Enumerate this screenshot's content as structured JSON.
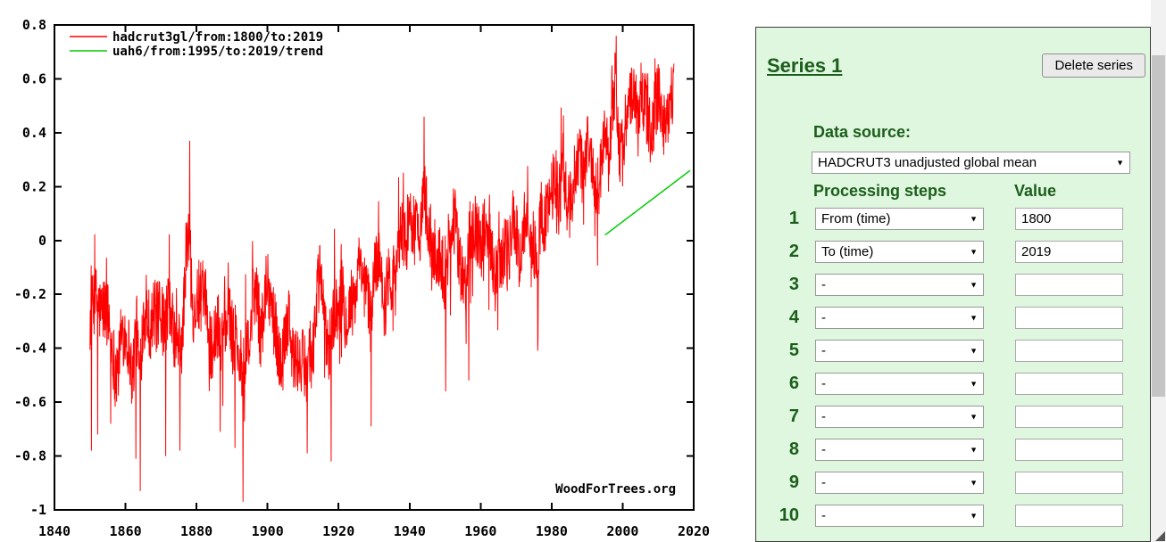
{
  "chart": {
    "watermark": "WoodForTrees.org"
  },
  "chart_data": {
    "type": "line",
    "title": "",
    "xlabel": "",
    "ylabel": "",
    "xlim": [
      1840,
      2020
    ],
    "ylim": [
      -1,
      0.8
    ],
    "grid": false,
    "legend_position": "top-left",
    "x_ticks": [
      1840,
      1860,
      1880,
      1900,
      1920,
      1940,
      1960,
      1980,
      2000,
      2020
    ],
    "x_tick_labels": [
      "1840",
      "1860",
      "1880",
      "1900",
      "1920",
      "1940",
      "1960",
      "1980",
      "2000",
      "2020"
    ],
    "y_ticks": [
      -1,
      -0.8,
      -0.6,
      -0.4,
      -0.2,
      0,
      0.2,
      0.4,
      0.6,
      0.8
    ],
    "y_tick_labels": [
      "-1",
      "-0.8",
      "-0.6",
      "-0.4",
      "-0.2",
      "0",
      "0.2",
      "0.4",
      "0.6",
      "0.8"
    ],
    "series": [
      {
        "name": "hadcrut3gl/from:1800/to:2019",
        "color": "#ff0000",
        "kind": "monthly_noisy",
        "x_start": 1850,
        "x_end": 2014.4,
        "annual_means": [
          -0.3,
          -0.22,
          -0.22,
          -0.27,
          -0.25,
          -0.27,
          -0.36,
          -0.47,
          -0.47,
          -0.33,
          -0.35,
          -0.4,
          -0.52,
          -0.3,
          -0.5,
          -0.28,
          -0.27,
          -0.32,
          -0.27,
          -0.28,
          -0.28,
          -0.33,
          -0.23,
          -0.3,
          -0.38,
          -0.39,
          -0.38,
          -0.06,
          0.03,
          -0.25,
          -0.24,
          -0.21,
          -0.21,
          -0.3,
          -0.39,
          -0.38,
          -0.31,
          -0.36,
          -0.32,
          -0.18,
          -0.4,
          -0.33,
          -0.45,
          -0.47,
          -0.43,
          -0.39,
          -0.2,
          -0.18,
          -0.36,
          -0.25,
          -0.15,
          -0.22,
          -0.31,
          -0.41,
          -0.48,
          -0.33,
          -0.25,
          -0.43,
          -0.45,
          -0.45,
          -0.46,
          -0.47,
          -0.4,
          -0.39,
          -0.19,
          -0.12,
          -0.32,
          -0.41,
          -0.33,
          -0.25,
          -0.25,
          -0.19,
          -0.29,
          -0.25,
          -0.26,
          -0.19,
          -0.09,
          -0.19,
          -0.17,
          -0.32,
          -0.11,
          -0.07,
          -0.12,
          -0.26,
          -0.11,
          -0.15,
          -0.11,
          0.0,
          0.03,
          0.0,
          0.05,
          0.07,
          0.04,
          0.05,
          0.2,
          0.09,
          -0.07,
          -0.05,
          -0.06,
          -0.07,
          -0.16,
          -0.01,
          0.03,
          0.08,
          -0.11,
          -0.13,
          -0.19,
          0.05,
          0.07,
          0.03,
          -0.02,
          0.03,
          0.0,
          0.01,
          -0.15,
          -0.09,
          -0.05,
          -0.02,
          -0.04,
          0.06,
          0.03,
          -0.08,
          0.02,
          0.14,
          -0.07,
          -0.01,
          -0.11,
          0.12,
          0.05,
          0.14,
          0.19,
          0.26,
          0.13,
          0.3,
          0.12,
          0.1,
          0.17,
          0.3,
          0.3,
          0.24,
          0.36,
          0.33,
          0.18,
          0.2,
          0.26,
          0.41,
          0.31,
          0.46,
          0.61,
          0.35,
          0.33,
          0.45,
          0.51,
          0.52,
          0.49,
          0.54,
          0.51,
          0.48,
          0.36,
          0.49,
          0.54,
          0.42,
          0.46,
          0.49,
          0.52
        ],
        "noise_amplitude": 0.13,
        "noise_seed": 12345,
        "spikes": [
          [
            1850.4,
            -0.78
          ],
          [
            1852.2,
            -0.72
          ],
          [
            1855.8,
            -0.68
          ],
          [
            1862.9,
            -0.81
          ],
          [
            1864.2,
            -0.93
          ],
          [
            1871.3,
            -0.8
          ],
          [
            1875.3,
            -0.78
          ],
          [
            1878.1,
            0.37
          ],
          [
            1886.7,
            -0.71
          ],
          [
            1890.8,
            -0.77
          ],
          [
            1893.1,
            -0.97
          ],
          [
            1911.2,
            -0.79
          ],
          [
            1917.9,
            -0.82
          ],
          [
            1929.2,
            -0.69
          ],
          [
            1944.1,
            0.46
          ],
          [
            1950.2,
            -0.56
          ],
          [
            1956.7,
            -0.52
          ],
          [
            1976.2,
            -0.37
          ],
          [
            1998.2,
            0.76
          ],
          [
            2007.1,
            0.62
          ],
          [
            2010.3,
            0.64
          ]
        ]
      },
      {
        "name": "uah6/from:1995/to:2019/trend",
        "color": "#00cc00",
        "kind": "trend",
        "x": [
          1995,
          2019
        ],
        "y": [
          0.02,
          0.26
        ]
      }
    ]
  },
  "panel": {
    "title": "Series 1",
    "delete_button": "Delete series",
    "data_source_label": "Data source:",
    "data_source_value": "HADCRUT3 unadjusted global mean",
    "processing_header": "Processing steps",
    "value_header": "Value",
    "rows": [
      {
        "num": "1",
        "step": "From (time)",
        "value": "1800"
      },
      {
        "num": "2",
        "step": "To (time)",
        "value": "2019"
      },
      {
        "num": "3",
        "step": "-",
        "value": ""
      },
      {
        "num": "4",
        "step": "-",
        "value": ""
      },
      {
        "num": "5",
        "step": "-",
        "value": ""
      },
      {
        "num": "6",
        "step": "-",
        "value": ""
      },
      {
        "num": "7",
        "step": "-",
        "value": ""
      },
      {
        "num": "8",
        "step": "-",
        "value": ""
      },
      {
        "num": "9",
        "step": "-",
        "value": ""
      },
      {
        "num": "10",
        "step": "-",
        "value": ""
      }
    ],
    "colors": {
      "background": "#dff6df",
      "heading": "#1b5e1b"
    }
  },
  "icons": {
    "dropdown_arrow": "▼"
  }
}
